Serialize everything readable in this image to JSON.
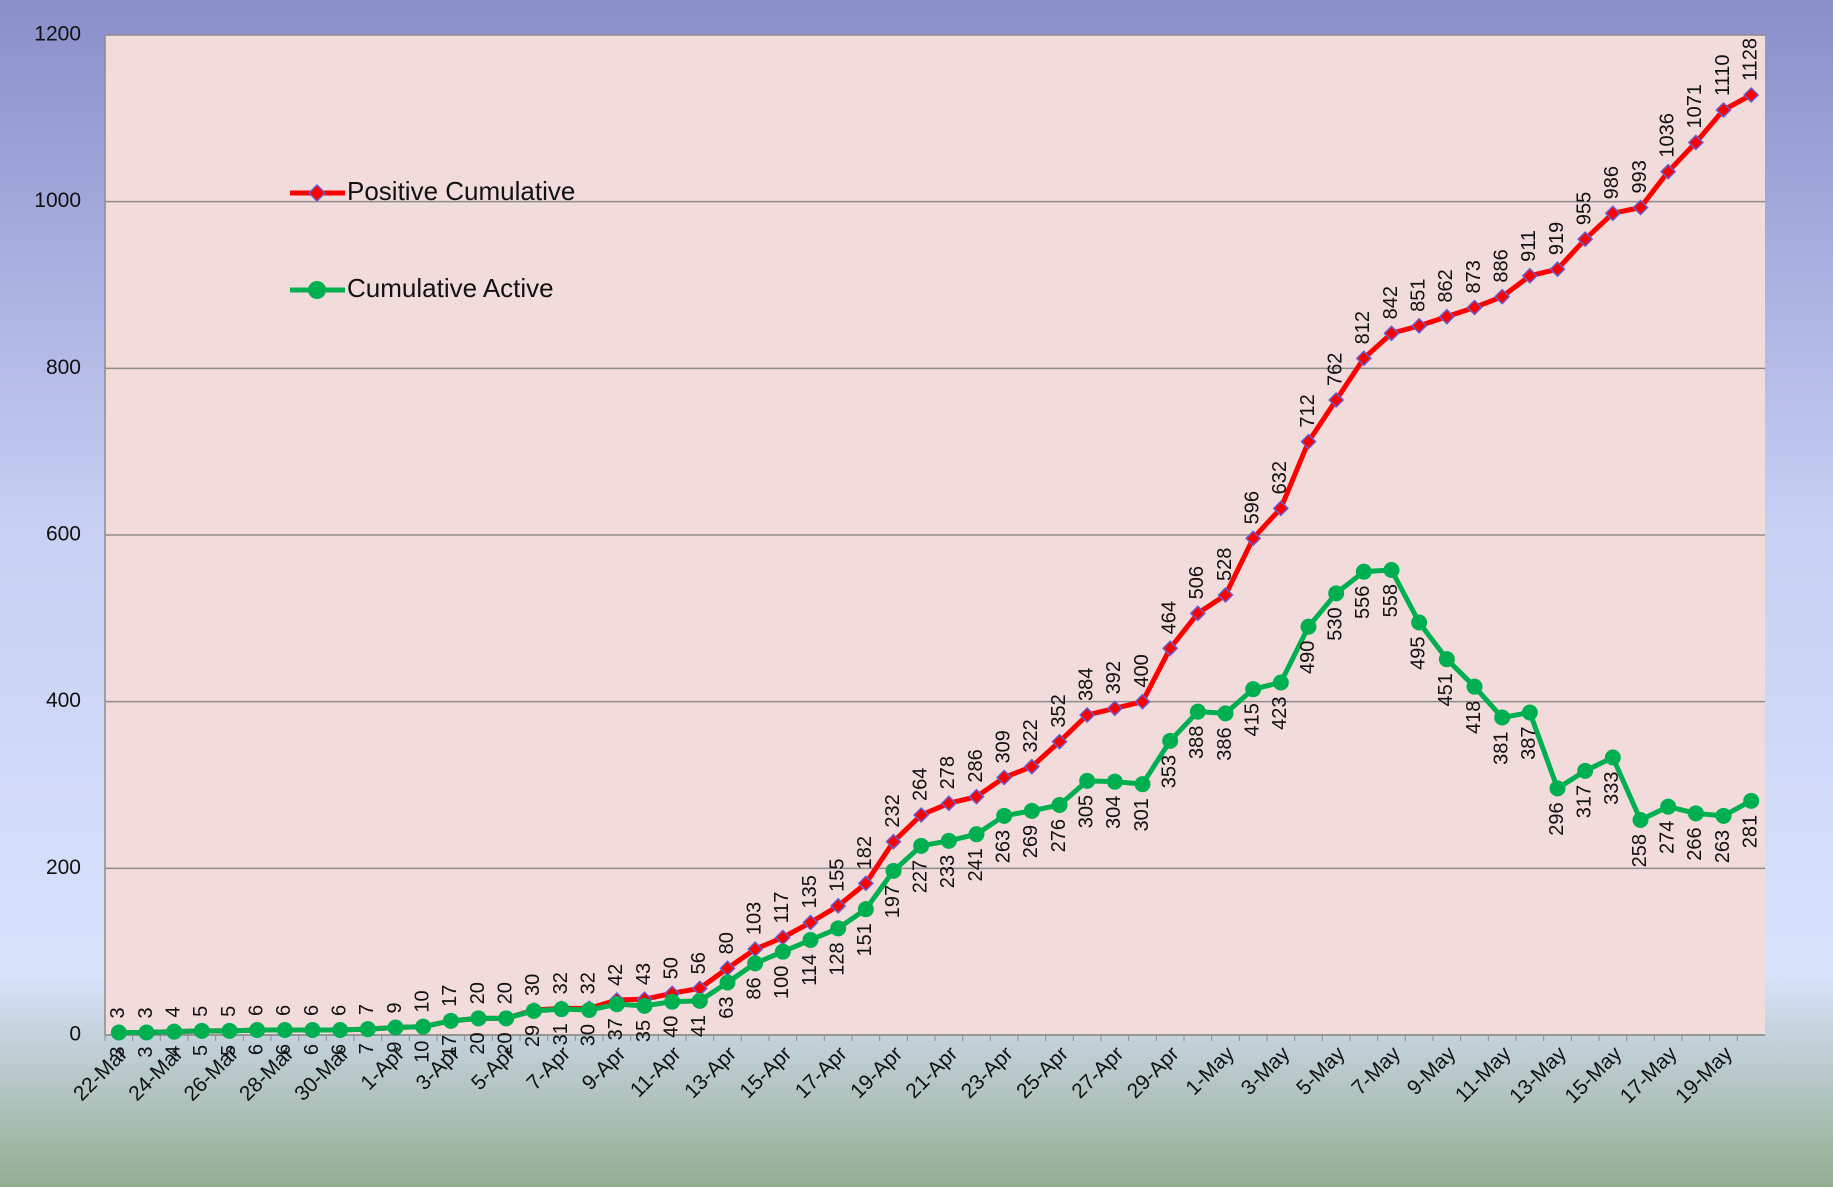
{
  "chart_data": {
    "type": "line",
    "categories": [
      "22-Mar",
      null,
      "24-Mar",
      null,
      "26-Mar",
      null,
      "28-Mar",
      null,
      "30-Mar",
      null,
      "1-Apr",
      null,
      "3-Apr",
      null,
      "5-Apr",
      null,
      "7-Apr",
      null,
      "9-Apr",
      null,
      "11-Apr",
      null,
      "13-Apr",
      null,
      "15-Apr",
      null,
      "17-Apr",
      null,
      "19-Apr",
      null,
      "21-Apr",
      null,
      "23-Apr",
      null,
      "25-Apr",
      null,
      "27-Apr",
      null,
      "29-Apr",
      null,
      "1-May",
      null,
      "3-May",
      null,
      "5-May",
      null,
      "7-May",
      null,
      "9-May",
      null,
      "11-May",
      null,
      "13-May",
      null,
      "15-May",
      null,
      "17-May",
      null,
      "19-May",
      null
    ],
    "series": [
      {
        "name": "Positive Cumulative",
        "color": "#ff0000",
        "marker": "diamond",
        "marker_color": "#6a5acd",
        "values": [
          3,
          3,
          4,
          5,
          5,
          6,
          6,
          6,
          6,
          7,
          9,
          10,
          17,
          20,
          20,
          30,
          32,
          32,
          42,
          43,
          50,
          56,
          80,
          103,
          117,
          135,
          155,
          182,
          232,
          264,
          278,
          286,
          309,
          322,
          352,
          384,
          392,
          400,
          464,
          506,
          528,
          596,
          632,
          712,
          762,
          812,
          842,
          851,
          862,
          873,
          886,
          911,
          919,
          955,
          986,
          993,
          1036,
          1071,
          1110,
          1128
        ]
      },
      {
        "name": "Cumulative Active",
        "color": "#00b050",
        "marker": "circle",
        "marker_color": "#00b050",
        "values": [
          3,
          3,
          4,
          5,
          5,
          6,
          6,
          6,
          6,
          7,
          9,
          10,
          17,
          20,
          20,
          29,
          31,
          30,
          37,
          35,
          40,
          41,
          63,
          86,
          100,
          114,
          128,
          151,
          197,
          227,
          233,
          241,
          263,
          269,
          276,
          305,
          304,
          301,
          353,
          388,
          386,
          415,
          423,
          490,
          530,
          556,
          558,
          495,
          451,
          418,
          381,
          387,
          296,
          317,
          333,
          258,
          274,
          266,
          263,
          281
        ]
      }
    ],
    "ylim": [
      0,
      1200
    ],
    "yticks": [
      0,
      200,
      400,
      600,
      800,
      1000,
      1200
    ],
    "grid": true,
    "legend": "upper left"
  }
}
